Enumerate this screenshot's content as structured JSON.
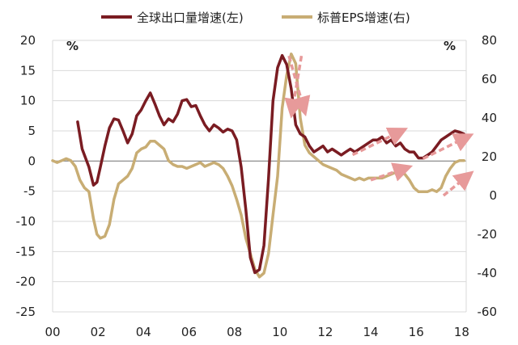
{
  "chart_data": {
    "type": "line",
    "title": "",
    "xlabel": "",
    "ylabel": "%",
    "y2label": "%",
    "x_ticks": [
      "00",
      "02",
      "04",
      "06",
      "08",
      "10",
      "12",
      "14",
      "16",
      "18"
    ],
    "xlim": [
      2000,
      2018.2
    ],
    "ylim": [
      -25,
      20
    ],
    "y2lim": [
      -60,
      80
    ],
    "y_ticks": [
      20,
      15,
      10,
      5,
      0,
      -5,
      -10,
      -15,
      -20,
      -25
    ],
    "y2_ticks": [
      80,
      60,
      40,
      20,
      0,
      -20,
      -40,
      -60
    ],
    "grid": "horizontal",
    "legend_position": "top",
    "colors": {
      "export": "#7a1c22",
      "eps": "#c8ad74",
      "arrow": "#e79a9a",
      "grid": "#d9d9d9",
      "zero": "#808080"
    },
    "series": [
      {
        "name": "全球出口量增速(左)",
        "axis": "left",
        "x": [
          2001.1,
          2001.3,
          2001.6,
          2001.8,
          2001.95,
          2002.1,
          2002.3,
          2002.5,
          2002.7,
          2002.9,
          2003.1,
          2003.3,
          2003.5,
          2003.7,
          2003.9,
          2004.1,
          2004.3,
          2004.5,
          2004.7,
          2004.9,
          2005.1,
          2005.3,
          2005.5,
          2005.7,
          2005.9,
          2006.1,
          2006.3,
          2006.5,
          2006.7,
          2006.9,
          2007.1,
          2007.3,
          2007.5,
          2007.7,
          2007.9,
          2008.1,
          2008.3,
          2008.5,
          2008.7,
          2008.9,
          2009.1,
          2009.3,
          2009.5,
          2009.7,
          2009.9,
          2010.1,
          2010.3,
          2010.5,
          2010.7,
          2010.9,
          2011.1,
          2011.3,
          2011.5,
          2011.7,
          2011.9,
          2012.1,
          2012.3,
          2012.5,
          2012.7,
          2012.9,
          2013.1,
          2013.3,
          2013.5,
          2013.7,
          2013.9,
          2014.1,
          2014.3,
          2014.5,
          2014.7,
          2014.9,
          2015.1,
          2015.3,
          2015.5,
          2015.7,
          2015.9,
          2016.1,
          2016.3,
          2016.5,
          2016.7,
          2016.9,
          2017.1,
          2017.3,
          2017.5,
          2017.7,
          2017.9,
          2018.1
        ],
        "values": [
          6.5,
          2.0,
          -1.0,
          -4.0,
          -3.5,
          -1.0,
          2.5,
          5.5,
          7.0,
          6.8,
          5.0,
          3.0,
          4.5,
          7.5,
          8.5,
          10.0,
          11.3,
          9.5,
          7.5,
          6.0,
          7.0,
          6.5,
          7.8,
          10.0,
          10.2,
          9.0,
          9.2,
          7.5,
          6.0,
          5.0,
          6.0,
          5.5,
          4.8,
          5.3,
          5.0,
          3.5,
          -1.0,
          -8.0,
          -16.0,
          -18.5,
          -18.0,
          -14.0,
          -3.0,
          10.0,
          15.5,
          17.5,
          16.0,
          12.0,
          6.0,
          4.5,
          4.0,
          2.5,
          1.5,
          2.0,
          2.5,
          1.5,
          2.0,
          1.5,
          1.0,
          1.5,
          2.0,
          1.5,
          2.0,
          2.5,
          3.0,
          3.5,
          3.5,
          4.0,
          3.0,
          3.5,
          2.5,
          3.0,
          2.0,
          1.5,
          1.5,
          0.5,
          0.5,
          1.0,
          1.5,
          2.5,
          3.5,
          4.0,
          4.5,
          5.0,
          4.8,
          4.5
        ]
      },
      {
        "name": "标普EPS增速(右)",
        "axis": "right",
        "x": [
          2000.0,
          2000.2,
          2000.4,
          2000.6,
          2000.8,
          2001.0,
          2001.2,
          2001.4,
          2001.6,
          2001.8,
          2001.95,
          2002.1,
          2002.3,
          2002.5,
          2002.7,
          2002.9,
          2003.1,
          2003.3,
          2003.5,
          2003.7,
          2003.9,
          2004.1,
          2004.3,
          2004.5,
          2004.7,
          2004.9,
          2005.1,
          2005.3,
          2005.5,
          2005.7,
          2005.9,
          2006.1,
          2006.3,
          2006.5,
          2006.7,
          2006.9,
          2007.1,
          2007.3,
          2007.5,
          2007.7,
          2007.9,
          2008.1,
          2008.3,
          2008.5,
          2008.7,
          2008.9,
          2009.1,
          2009.3,
          2009.5,
          2009.7,
          2009.9,
          2010.1,
          2010.3,
          2010.5,
          2010.7,
          2010.9,
          2011.1,
          2011.3,
          2011.5,
          2011.7,
          2011.9,
          2012.1,
          2012.3,
          2012.5,
          2012.7,
          2012.9,
          2013.1,
          2013.3,
          2013.5,
          2013.7,
          2013.9,
          2014.1,
          2014.3,
          2014.5,
          2014.7,
          2014.9,
          2015.1,
          2015.3,
          2015.5,
          2015.7,
          2015.9,
          2016.1,
          2016.3,
          2016.5,
          2016.7,
          2016.9,
          2017.1,
          2017.3,
          2017.5,
          2017.7,
          2017.9,
          2018.1
        ],
        "values": [
          18,
          17,
          18,
          19,
          18,
          15,
          8,
          4,
          2,
          -12,
          -20,
          -22,
          -21,
          -15,
          -2,
          6,
          8,
          10,
          14,
          22,
          24,
          25,
          28,
          28,
          26,
          24,
          18,
          16,
          15,
          15,
          14,
          15,
          16,
          17,
          15,
          16,
          17,
          16,
          14,
          10,
          5,
          -2,
          -10,
          -22,
          -30,
          -38,
          -42,
          -40,
          -30,
          -10,
          10,
          45,
          62,
          73,
          68,
          40,
          26,
          22,
          20,
          18,
          16,
          15,
          14,
          13,
          11,
          10,
          9,
          8,
          9,
          8,
          9,
          9,
          9,
          9,
          10,
          11,
          12,
          12,
          11,
          8,
          4,
          2,
          2,
          2,
          3,
          2,
          4,
          10,
          14,
          17,
          18,
          18
        ]
      }
    ],
    "annotations": [
      {
        "type": "arrow",
        "x": [
          2010.4,
          2011.05
        ],
        "axis": "right",
        "y": [
          72,
          45
        ]
      },
      {
        "type": "arrow",
        "x": [
          2010.95,
          2010.55
        ],
        "axis": "right",
        "y": [
          72,
          44
        ]
      },
      {
        "type": "arrow",
        "x": [
          2013.2,
          2015.3
        ],
        "axis": "right",
        "y": [
          21,
          33
        ]
      },
      {
        "type": "arrow",
        "x": [
          2016.3,
          2018.2
        ],
        "axis": "right",
        "y": [
          19,
          30
        ]
      },
      {
        "type": "arrow",
        "x": [
          2014.0,
          2015.5
        ],
        "axis": "right",
        "y": [
          8,
          14
        ]
      },
      {
        "type": "arrow",
        "x": [
          2017.2,
          2018.25
        ],
        "axis": "right",
        "y": [
          0,
          10
        ]
      }
    ]
  }
}
